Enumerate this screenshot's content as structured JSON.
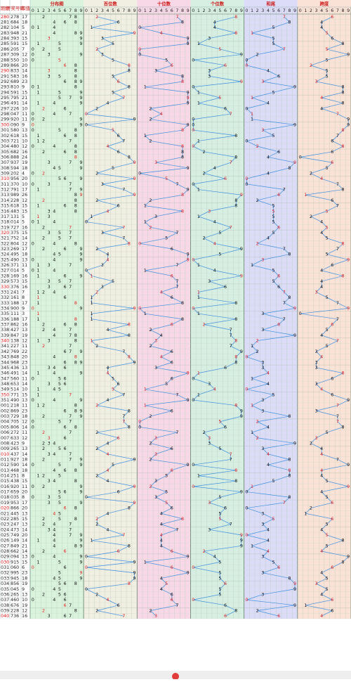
{
  "columns": [
    "期数",
    "开奖号码",
    "和值"
  ],
  "sections": [
    "分布图",
    "百位数",
    "十位数",
    "个位数",
    "和尾",
    "跨度"
  ],
  "digit_header": [
    0,
    1,
    2,
    3,
    4,
    5,
    6,
    7,
    8,
    9
  ],
  "rows": [
    [
      "280",
      "278",
      17,
      [
        2,
        7,
        8
      ],
      7,
      6
    ],
    [
      "281",
      "684",
      18,
      [
        6,
        8,
        4
      ],
      8,
      4
    ],
    [
      "282",
      "104",
      5,
      [
        1,
        0,
        4
      ],
      5,
      4
    ],
    [
      "283",
      "948",
      21,
      [
        9,
        4,
        8
      ],
      1,
      5
    ],
    [
      "284",
      "393",
      15,
      [
        3,
        9,
        3
      ],
      5,
      6
    ],
    [
      "285",
      "591",
      15,
      [
        5,
        9,
        1
      ],
      5,
      8
    ],
    [
      "286",
      "205",
      7,
      [
        2,
        0,
        5
      ],
      7,
      5
    ],
    [
      "287",
      "309",
      12,
      [
        3,
        0,
        9
      ],
      2,
      9
    ],
    [
      "288",
      "550",
      10,
      [
        5,
        5,
        0
      ],
      0,
      5
    ],
    [
      "289",
      "866",
      20,
      [
        8,
        6,
        6
      ],
      0,
      2
    ],
    [
      "290",
      "833",
      14,
      [
        8,
        3,
        3
      ],
      4,
      5
    ],
    [
      "291",
      "583",
      16,
      [
        5,
        8,
        3
      ],
      6,
      5
    ],
    [
      "292",
      "689",
      23,
      [
        6,
        8,
        9
      ],
      3,
      3
    ],
    [
      "293",
      "810",
      9,
      [
        8,
        1,
        0
      ],
      9,
      8
    ],
    [
      "294",
      "591",
      15,
      [
        5,
        9,
        1
      ],
      5,
      8
    ],
    [
      "295",
      "795",
      21,
      [
        7,
        9,
        5
      ],
      1,
      4
    ],
    [
      "296",
      "491",
      14,
      [
        4,
        9,
        1
      ],
      4,
      8
    ],
    [
      "297",
      "226",
      10,
      [
        2,
        2,
        6
      ],
      0,
      4
    ],
    [
      "298",
      "047",
      11,
      [
        0,
        4,
        7
      ],
      1,
      7
    ],
    [
      "299",
      "920",
      11,
      [
        9,
        2,
        0
      ],
      1,
      9
    ],
    [
      "300",
      "090",
      9,
      [
        0,
        9,
        0
      ],
      9,
      9
    ],
    [
      "301",
      "580",
      13,
      [
        5,
        8,
        0
      ],
      3,
      8
    ],
    [
      "302",
      "618",
      15,
      [
        6,
        1,
        8
      ],
      5,
      7
    ],
    [
      "303",
      "721",
      10,
      [
        7,
        2,
        1
      ],
      0,
      6
    ],
    [
      "304",
      "480",
      12,
      [
        4,
        8,
        0
      ],
      2,
      8
    ],
    [
      "305",
      "682",
      16,
      [
        6,
        8,
        2
      ],
      6,
      6
    ],
    [
      "306",
      "888",
      24,
      [
        8,
        8,
        8
      ],
      4,
      0
    ],
    [
      "307",
      "937",
      19,
      [
        9,
        3,
        7
      ],
      9,
      6
    ],
    [
      "308",
      "594",
      18,
      [
        5,
        9,
        4
      ],
      8,
      5
    ],
    [
      "309",
      "202",
      4,
      [
        2,
        0,
        2
      ],
      4,
      2
    ],
    [
      "310",
      "956",
      20,
      [
        9,
        5,
        6
      ],
      0,
      4
    ],
    [
      "311",
      "370",
      10,
      [
        3,
        7,
        0
      ],
      0,
      7
    ],
    [
      "312",
      "791",
      17,
      [
        7,
        9,
        1
      ],
      7,
      8
    ],
    [
      "313",
      "989",
      26,
      [
        9,
        8,
        9
      ],
      6,
      1
    ],
    [
      "314",
      "228",
      12,
      [
        2,
        2,
        8
      ],
      2,
      6
    ],
    [
      "315",
      "618",
      15,
      [
        6,
        1,
        8
      ],
      5,
      7
    ],
    [
      "316",
      "483",
      15,
      [
        4,
        8,
        3
      ],
      5,
      5
    ],
    [
      "317",
      "131",
      5,
      [
        1,
        3,
        1
      ],
      5,
      2
    ],
    [
      "318",
      "014",
      5,
      [
        0,
        1,
        4
      ],
      5,
      4
    ],
    [
      "319",
      "727",
      16,
      [
        7,
        2,
        7
      ],
      6,
      5
    ],
    [
      "320",
      "375",
      15,
      [
        3,
        7,
        5
      ],
      5,
      4
    ],
    [
      "321",
      "752",
      14,
      [
        7,
        5,
        2
      ],
      4,
      5
    ],
    [
      "322",
      "804",
      12,
      [
        8,
        0,
        4
      ],
      2,
      8
    ],
    [
      "323",
      "269",
      17,
      [
        2,
        6,
        9
      ],
      7,
      7
    ],
    [
      "324",
      "495",
      18,
      [
        4,
        9,
        5
      ],
      8,
      5
    ],
    [
      "325",
      "490",
      13,
      [
        4,
        9,
        0
      ],
      3,
      9
    ],
    [
      "326",
      "371",
      11,
      [
        3,
        7,
        1
      ],
      1,
      6
    ],
    [
      "327",
      "014",
      5,
      [
        0,
        1,
        4
      ],
      5,
      4
    ],
    [
      "328",
      "169",
      16,
      [
        1,
        6,
        9
      ],
      6,
      8
    ],
    [
      "329",
      "573",
      15,
      [
        5,
        7,
        3
      ],
      5,
      4
    ],
    [
      "330",
      "376",
      16,
      [
        3,
        7,
        6
      ],
      6,
      4
    ],
    [
      "331",
      "241",
      7,
      [
        2,
        4,
        1
      ],
      7,
      3
    ],
    [
      "332",
      "161",
      8,
      [
        1,
        6,
        1
      ],
      8,
      5
    ],
    [
      "333",
      "188",
      17,
      [
        1,
        8,
        8
      ],
      7,
      7
    ],
    [
      "334",
      "900",
      9,
      [
        9,
        0,
        0
      ],
      9,
      9
    ],
    [
      "335",
      "111",
      3,
      [
        1,
        1,
        1
      ],
      3,
      0
    ],
    [
      "336",
      "188",
      17,
      [
        1,
        8,
        8
      ],
      7,
      7
    ],
    [
      "337",
      "862",
      16,
      [
        8,
        6,
        2
      ],
      6,
      6
    ],
    [
      "338",
      "427",
      13,
      [
        4,
        2,
        7
      ],
      3,
      5
    ],
    [
      "339",
      "847",
      19,
      [
        8,
        4,
        7
      ],
      9,
      4
    ],
    [
      "340",
      "138",
      12,
      [
        1,
        3,
        8
      ],
      2,
      7
    ],
    [
      "341",
      "227",
      11,
      [
        2,
        2,
        7
      ],
      1,
      5
    ],
    [
      "342",
      "769",
      22,
      [
        7,
        6,
        9
      ],
      2,
      3
    ],
    [
      "343",
      "848",
      20,
      [
        8,
        4,
        8
      ],
      0,
      4
    ],
    [
      "344",
      "968",
      23,
      [
        9,
        6,
        8
      ],
      3,
      3
    ],
    [
      "345",
      "436",
      13,
      [
        4,
        3,
        6
      ],
      3,
      3
    ],
    [
      "346",
      "491",
      14,
      [
        4,
        9,
        1
      ],
      4,
      8
    ],
    [
      "347",
      "560",
      11,
      [
        5,
        6,
        0
      ],
      1,
      6
    ],
    [
      "348",
      "653",
      14,
      [
        6,
        5,
        3
      ],
      4,
      3
    ],
    [
      "349",
      "514",
      10,
      [
        5,
        1,
        4
      ],
      0,
      4
    ],
    [
      "350",
      "771",
      15,
      [
        7,
        7,
        1
      ],
      5,
      6
    ],
    [
      "351",
      "490",
      13,
      [
        4,
        9,
        0
      ],
      3,
      9
    ],
    [
      "001",
      "218",
      11,
      [
        2,
        1,
        8
      ],
      1,
      7
    ],
    [
      "002",
      "869",
      23,
      [
        8,
        6,
        9
      ],
      3,
      3
    ],
    [
      "003",
      "729",
      18,
      [
        7,
        2,
        9
      ],
      8,
      7
    ],
    [
      "004",
      "705",
      12,
      [
        7,
        0,
        5
      ],
      2,
      7
    ],
    [
      "005",
      "806",
      14,
      [
        8,
        0,
        6
      ],
      4,
      8
    ],
    [
      "006",
      "272",
      11,
      [
        2,
        7,
        2
      ],
      1,
      5
    ],
    [
      "007",
      "633",
      12,
      [
        6,
        3,
        3
      ],
      2,
      3
    ],
    [
      "008",
      "423",
      9,
      [
        4,
        2,
        3
      ],
      9,
      2
    ],
    [
      "009",
      "265",
      13,
      [
        2,
        6,
        5
      ],
      3,
      4
    ],
    [
      "010",
      "437",
      14,
      [
        4,
        3,
        7
      ],
      4,
      4
    ],
    [
      "011",
      "927",
      18,
      [
        9,
        2,
        7
      ],
      8,
      7
    ],
    [
      "012",
      "590",
      14,
      [
        5,
        9,
        0
      ],
      4,
      9
    ],
    [
      "013",
      "468",
      18,
      [
        4,
        6,
        8
      ],
      8,
      4
    ],
    [
      "014",
      "251",
      8,
      [
        2,
        5,
        1
      ],
      8,
      4
    ],
    [
      "015",
      "438",
      15,
      [
        4,
        3,
        8
      ],
      5,
      5
    ],
    [
      "016",
      "920",
      11,
      [
        9,
        2,
        0
      ],
      1,
      9
    ],
    [
      "017",
      "659",
      20,
      [
        6,
        5,
        9
      ],
      0,
      4
    ],
    [
      "018",
      "035",
      8,
      [
        0,
        3,
        5
      ],
      8,
      5
    ],
    [
      "019",
      "953",
      17,
      [
        9,
        5,
        3
      ],
      7,
      6
    ],
    [
      "020",
      "866",
      20,
      [
        8,
        6,
        6
      ],
      0,
      2
    ],
    [
      "021",
      "445",
      13,
      [
        4,
        4,
        5
      ],
      3,
      1
    ],
    [
      "022",
      "285",
      15,
      [
        2,
        8,
        5
      ],
      5,
      6
    ],
    [
      "023",
      "247",
      13,
      [
        2,
        4,
        7
      ],
      3,
      5
    ],
    [
      "024",
      "473",
      14,
      [
        4,
        7,
        3
      ],
      4,
      4
    ],
    [
      "025",
      "749",
      20,
      [
        7,
        4,
        9
      ],
      0,
      5
    ],
    [
      "026",
      "149",
      14,
      [
        1,
        4,
        9
      ],
      4,
      8
    ],
    [
      "027",
      "849",
      21,
      [
        8,
        4,
        9
      ],
      1,
      5
    ],
    [
      "028",
      "662",
      14,
      [
        6,
        6,
        2
      ],
      4,
      4
    ],
    [
      "029",
      "094",
      13,
      [
        0,
        9,
        4
      ],
      3,
      9
    ],
    [
      "030",
      "915",
      15,
      [
        9,
        1,
        5
      ],
      5,
      8
    ],
    [
      "031",
      "060",
      6,
      [
        0,
        6,
        0
      ],
      6,
      6
    ],
    [
      "032",
      "995",
      23,
      [
        9,
        9,
        5
      ],
      3,
      4
    ],
    [
      "033",
      "945",
      18,
      [
        9,
        4,
        5
      ],
      8,
      5
    ],
    [
      "034",
      "856",
      19,
      [
        8,
        5,
        6
      ],
      9,
      3
    ],
    [
      "035",
      "045",
      9,
      [
        0,
        4,
        5
      ],
      9,
      5
    ],
    [
      "036",
      "265",
      13,
      [
        2,
        6,
        5
      ],
      3,
      4
    ],
    [
      "037",
      "460",
      10,
      [
        4,
        6,
        0
      ],
      0,
      6
    ],
    [
      "038",
      "676",
      19,
      [
        6,
        7,
        6
      ],
      9,
      1
    ],
    [
      "039",
      "228",
      12,
      [
        2,
        2,
        8
      ],
      2,
      6
    ],
    [
      "040",
      "736",
      16,
      [
        7,
        3,
        6
      ],
      6,
      4
    ]
  ]
}
